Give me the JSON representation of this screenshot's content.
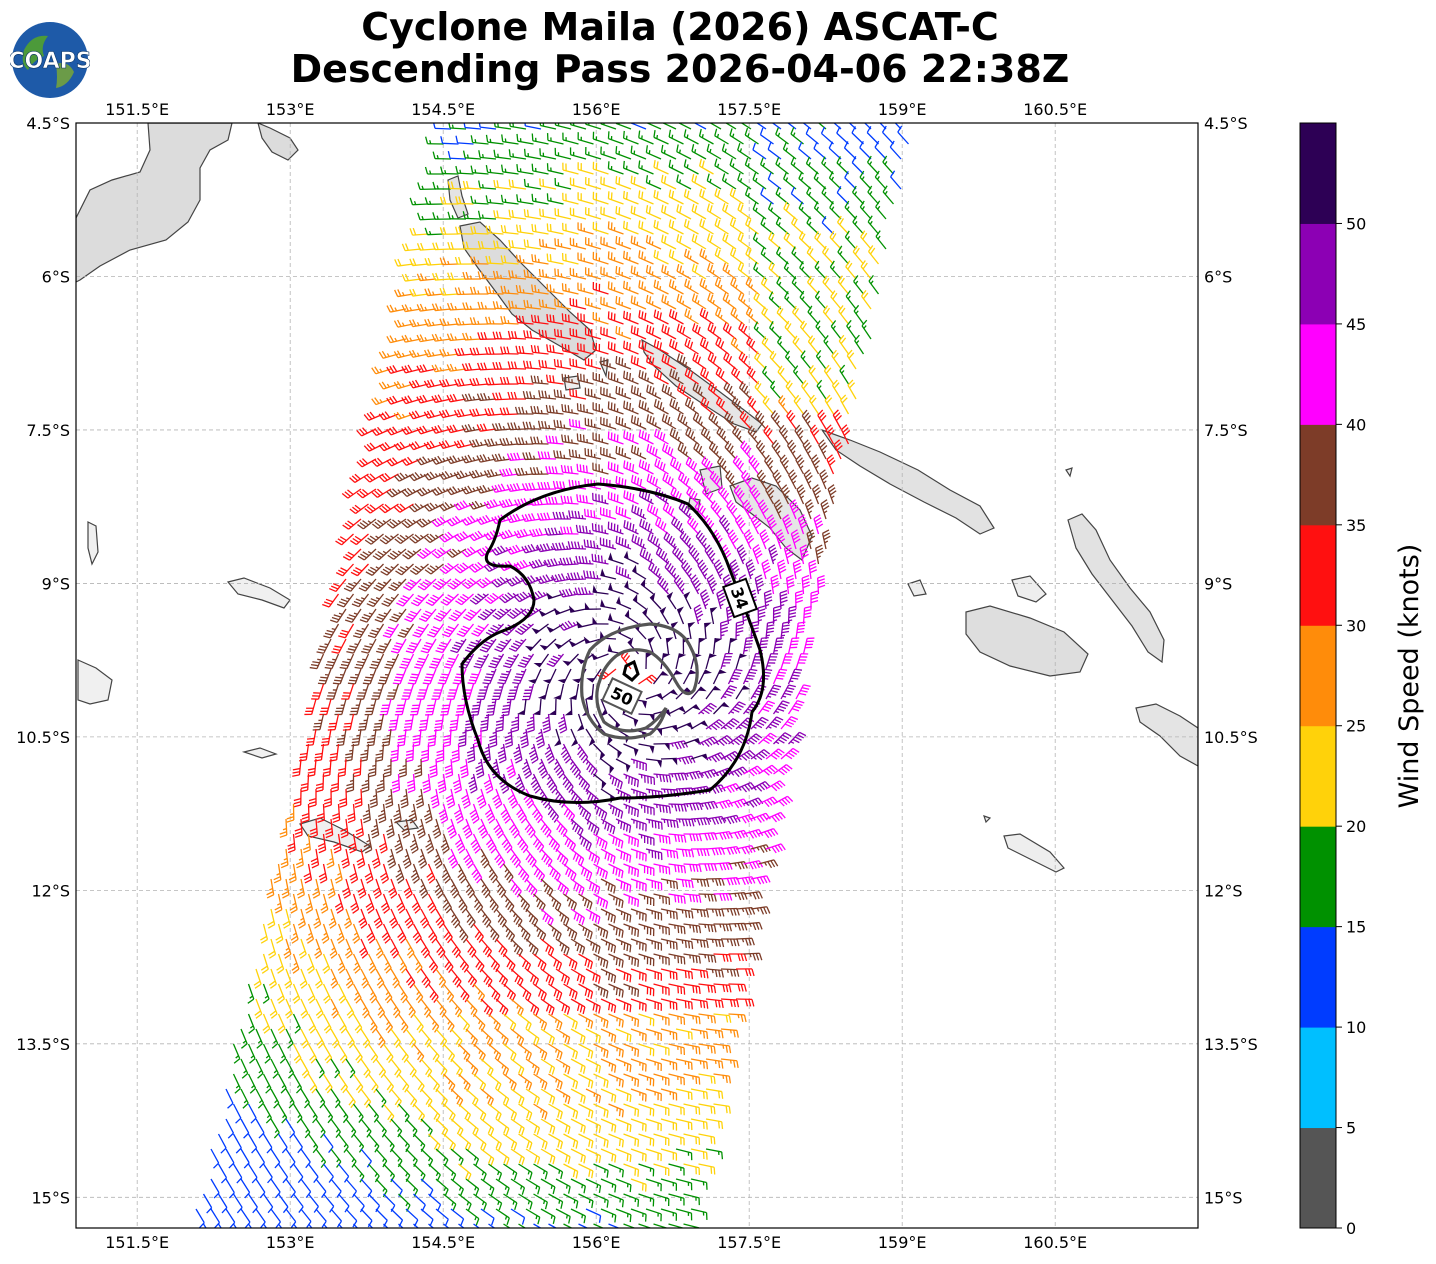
{
  "title": {
    "line1": "Cyclone Maila (2026) ASCAT-C",
    "line2": "Descending Pass 2026-04-06 22:38Z"
  },
  "logo": {
    "text": "COAPS"
  },
  "map": {
    "lon_range": [
      150.9,
      161.9
    ],
    "lat_range": [
      -15.3,
      -4.5
    ],
    "lon_ticks": [
      "151.5°E",
      "153°E",
      "154.5°E",
      "156°E",
      "157.5°E",
      "159°E",
      "160.5°E"
    ],
    "lat_ticks": [
      "4.5°S",
      "6°S",
      "7.5°S",
      "9°S",
      "10.5°S",
      "12°S",
      "13.5°S",
      "15°S"
    ],
    "grid": true,
    "storm_center": {
      "lon": 156.3,
      "lat": -9.9
    },
    "contours": [
      {
        "label": "34",
        "unit": "kt",
        "color": "#000000"
      },
      {
        "label": "50",
        "unit": "kt",
        "color": "#555555"
      }
    ]
  },
  "colorbar": {
    "label": "Wind Speed (knots)",
    "ticks": [
      "0",
      "5",
      "10",
      "15",
      "20",
      "25",
      "30",
      "35",
      "40",
      "45",
      "50"
    ],
    "bins": [
      {
        "min": 0,
        "max": 5,
        "color": "#555555"
      },
      {
        "min": 5,
        "max": 10,
        "color": "#00bfff"
      },
      {
        "min": 10,
        "max": 15,
        "color": "#003cff"
      },
      {
        "min": 15,
        "max": 20,
        "color": "#009100"
      },
      {
        "min": 20,
        "max": 25,
        "color": "#ffd20a"
      },
      {
        "min": 25,
        "max": 30,
        "color": "#ff8c0a"
      },
      {
        "min": 30,
        "max": 35,
        "color": "#ff1010"
      },
      {
        "min": 35,
        "max": 40,
        "color": "#7d3c28"
      },
      {
        "min": 40,
        "max": 45,
        "color": "#ff00ff"
      },
      {
        "min": 45,
        "max": 50,
        "color": "#8c00b4"
      },
      {
        "min": 50,
        "max": 55,
        "color": "#2d0055"
      }
    ]
  }
}
